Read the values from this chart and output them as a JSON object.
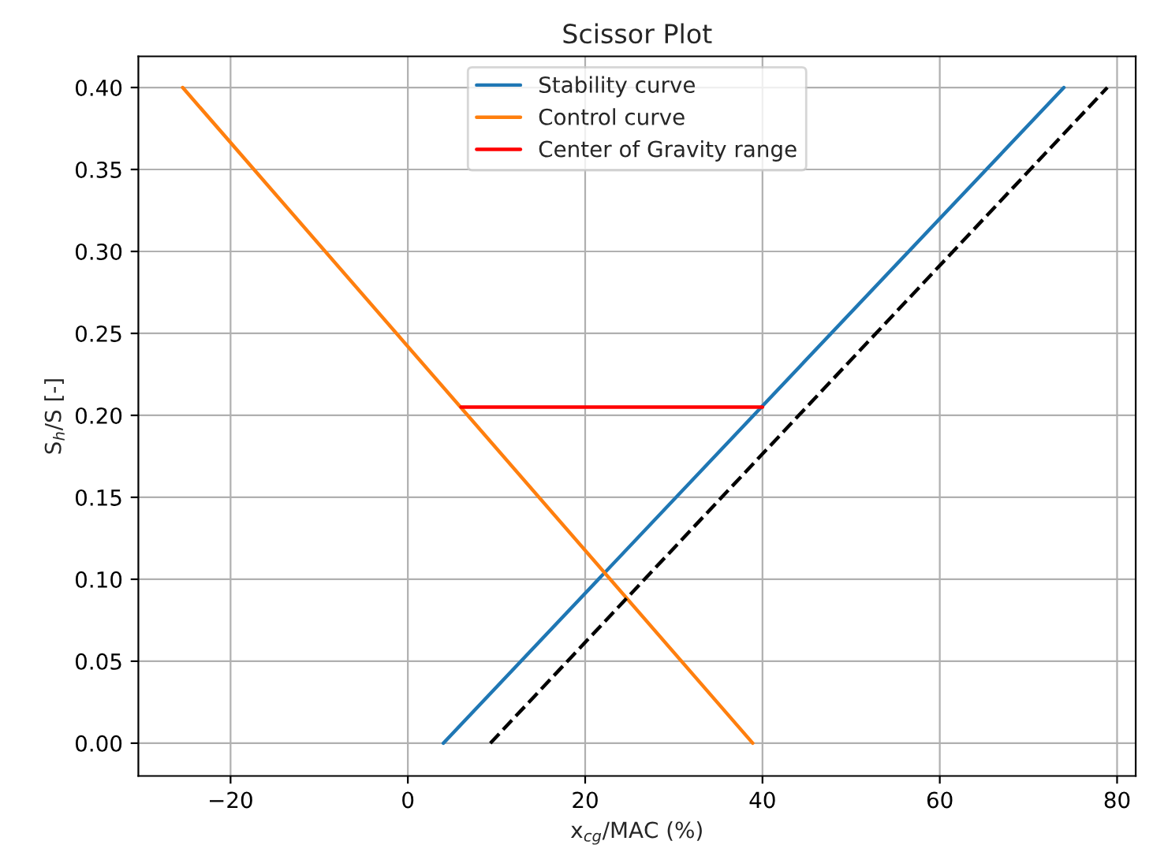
{
  "chart_data": {
    "type": "line",
    "title": "Scissor Plot",
    "xlabel": "x$_{cg}$/MAC (%)",
    "ylabel": "S$_{h}$/S [-]",
    "series": [
      {
        "name": "Stability curve",
        "color": "#1f77b4",
        "x": [
          4.0,
          74.0
        ],
        "values": [
          0.0,
          0.4
        ],
        "line_style": "solid"
      },
      {
        "name": "Control curve",
        "color": "#ff7f0e",
        "x": [
          -25.4,
          38.9
        ],
        "values": [
          0.4,
          0.0
        ],
        "line_style": "solid"
      },
      {
        "name": "Center of Gravity range",
        "color": "#ff0000",
        "x": [
          6.0,
          40.0
        ],
        "values": [
          0.205,
          0.205
        ],
        "line_style": "solid"
      },
      {
        "color": "#000000",
        "x": [
          9.3,
          78.9
        ],
        "values": [
          0.0,
          0.4
        ],
        "line_style": "dashed"
      }
    ],
    "xlim": [
      -30.4,
      82.1
    ],
    "xticks": [
      {
        "value": -20,
        "label": "−20"
      },
      0,
      20,
      40,
      60,
      80
    ],
    "ylim": [
      -0.02,
      0.419
    ],
    "yticks": [
      {
        "value": 0,
        "label": "0.00"
      },
      {
        "value": 0.05,
        "label": "0.05"
      },
      {
        "value": 0.1,
        "label": "0.10"
      },
      {
        "value": 0.15,
        "label": "0.15"
      },
      {
        "value": 0.2,
        "label": "0.20"
      },
      {
        "value": 0.25,
        "label": "0.25"
      },
      {
        "value": 0.3,
        "label": "0.30"
      },
      {
        "value": 0.35,
        "label": "0.35"
      },
      {
        "value": 0.4,
        "label": "0.40"
      }
    ],
    "grid": true,
    "legend": "top",
    "marker": "none"
  }
}
